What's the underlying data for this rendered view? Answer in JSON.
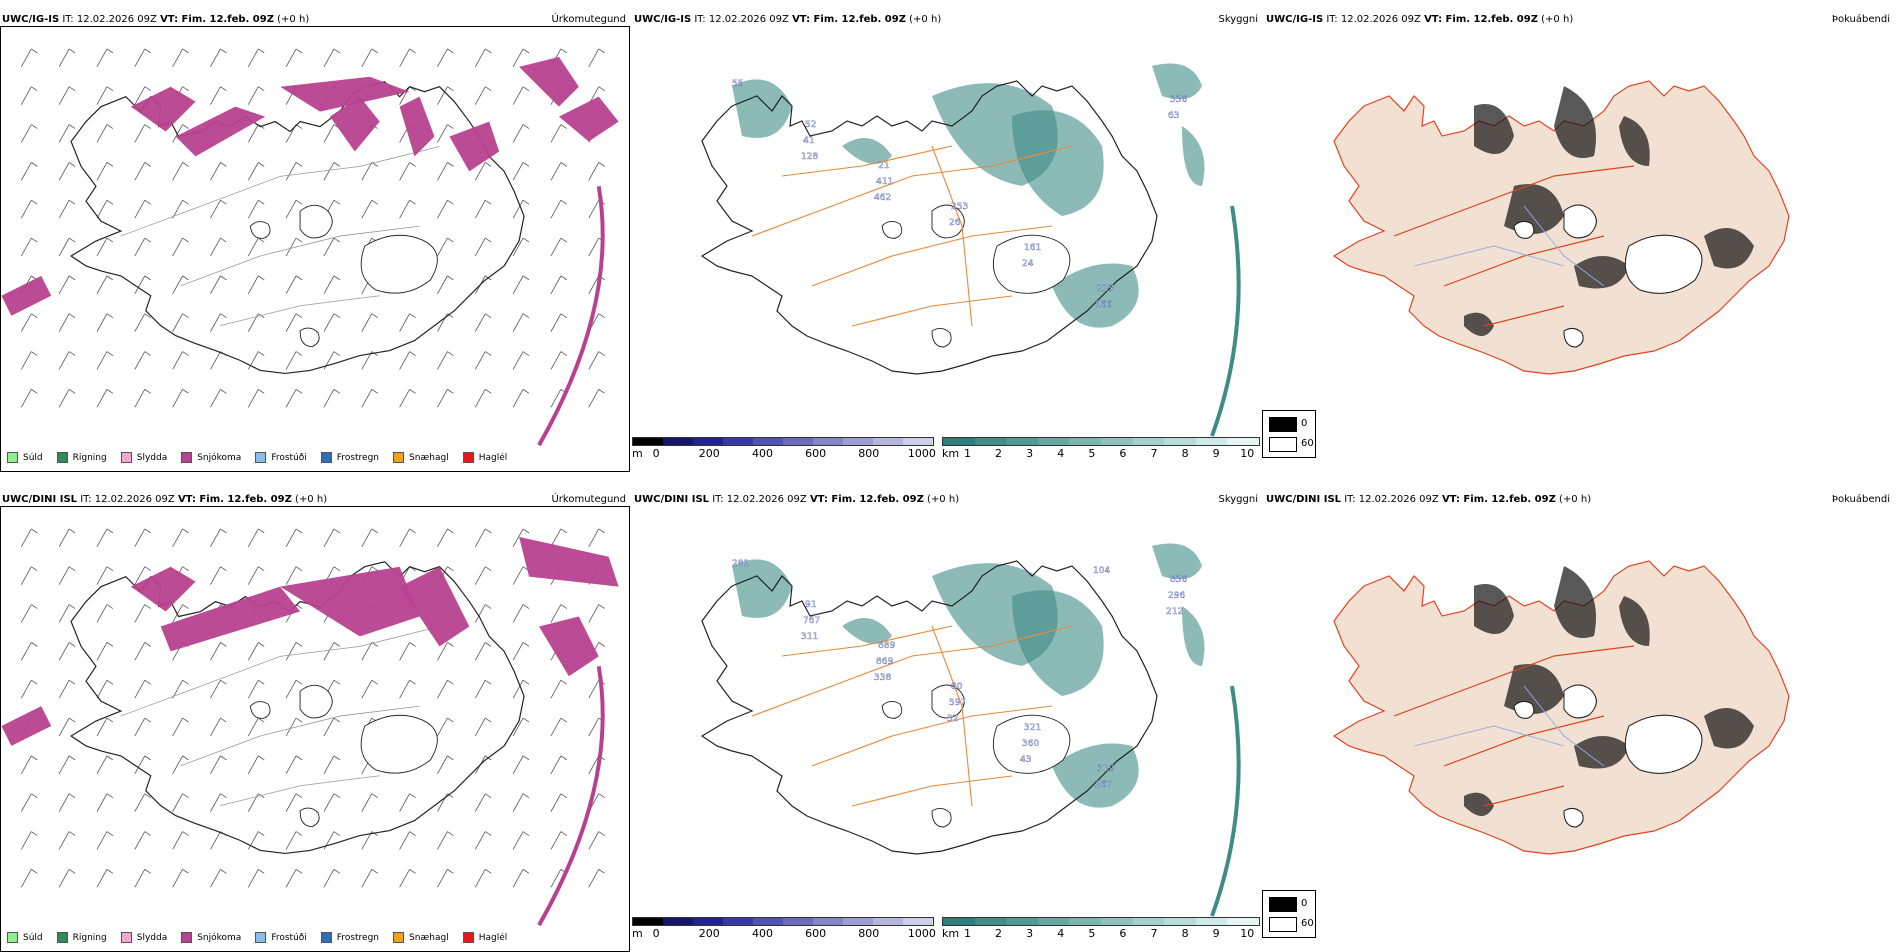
{
  "rows": [
    {
      "model": "UWC/IG-IS",
      "it_label": "IT:",
      "it_value": "12.02.2026 09Z",
      "vt_label": "VT: Fim. 12.feb. 09Z",
      "lead": "(+0 h)"
    },
    {
      "model": "UWC/DINI ISL",
      "it_label": "IT:",
      "it_value": "12.02.2026 09Z",
      "vt_label": "VT: Fim. 12.feb. 09Z",
      "lead": "(+0 h)"
    }
  ],
  "panel_titles": {
    "precip": "Úrkomutegund",
    "cloud": "Skyggni",
    "fog": "Þokuábendi"
  },
  "precip_legend": [
    {
      "label": "Súld",
      "color": "#90ee90"
    },
    {
      "label": "Rigning",
      "color": "#2e8b57"
    },
    {
      "label": "Slydda",
      "color": "#f4a6d2"
    },
    {
      "label": "Snjókoma",
      "color": "#b8418f"
    },
    {
      "label": "Frostúði",
      "color": "#87bde8"
    },
    {
      "label": "Frostregn",
      "color": "#2f6db5"
    },
    {
      "label": "Snæhagl",
      "color": "#f0a020"
    },
    {
      "label": "Haglél",
      "color": "#e41a1c"
    }
  ],
  "ceiling_bar": {
    "unit": "m",
    "ticks": [
      "0",
      "200",
      "400",
      "600",
      "800",
      "1000"
    ],
    "colors": [
      "#000000",
      "#15156b",
      "#23238f",
      "#3a3aa6",
      "#5252b4",
      "#6b6bbf",
      "#8484c9",
      "#9d9dd3",
      "#b6b6dd",
      "#cfcfe8"
    ]
  },
  "visibility_bar": {
    "unit": "km",
    "ticks": [
      "1",
      "2",
      "3",
      "4",
      "5",
      "6",
      "7",
      "8",
      "9",
      "10"
    ],
    "colors": [
      "#2b7f7a",
      "#3f8c87",
      "#539a95",
      "#67a7a2",
      "#7bb5b0",
      "#90c2be",
      "#a4d0cc",
      "#b8ddd9",
      "#cceae7",
      "#e8f5f4"
    ]
  },
  "fog_legend": {
    "high": "0",
    "low": "60"
  },
  "cloud_labels_top": [
    "55",
    "52",
    "21",
    "253",
    "161",
    "223",
    "336",
    "41",
    "411",
    "26",
    "24",
    "166",
    "63",
    "128",
    "462"
  ],
  "cloud_labels_bottom": [
    "281",
    "91",
    "889",
    "80",
    "321",
    "319",
    "836",
    "767",
    "869",
    "597",
    "360",
    "267",
    "296",
    "311",
    "338",
    "32",
    "43",
    "104",
    "212"
  ]
}
